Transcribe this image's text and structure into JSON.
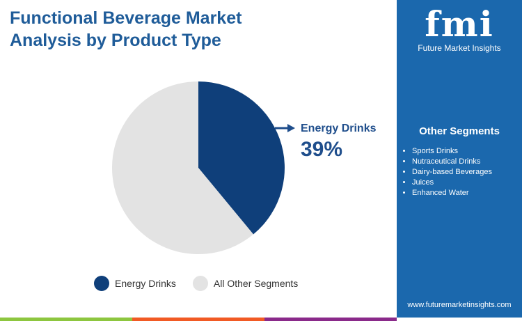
{
  "title": "Functional Beverage Market Analysis by Product Type",
  "logo": {
    "mark": "fmi",
    "name": "Future Market Insights"
  },
  "panel": {
    "heading": "Other Segments",
    "items": [
      "Sports Drinks",
      "Nutraceutical Drinks",
      "Dairy-based Beverages",
      "Juices",
      "Enhanced Water"
    ],
    "url": "www.futuremarketinsights.com"
  },
  "colors": {
    "energy": "#0f3f7a",
    "other": "#e3e3e3",
    "panel": "#1b68ad",
    "bars": [
      "#8dc63f",
      "#f15a24",
      "#8a2a8a"
    ]
  },
  "chart_data": {
    "type": "pie",
    "categories": [
      "Energy Drinks",
      "All Other Segments"
    ],
    "values": [
      39,
      61
    ],
    "annotation": {
      "label": "Energy Drinks",
      "value": "39%"
    },
    "legend": "bottom"
  }
}
